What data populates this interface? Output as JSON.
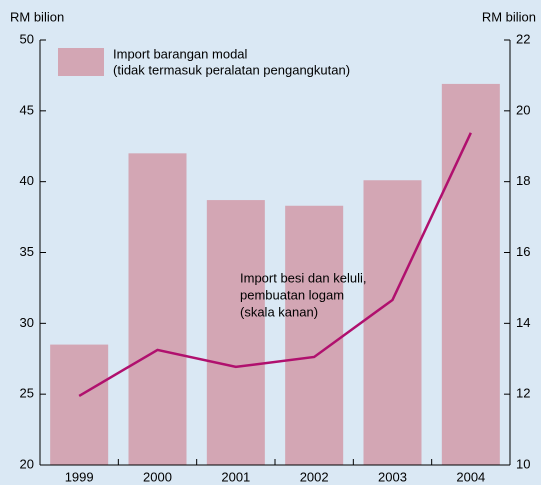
{
  "chart_data": {
    "type": "bar-line",
    "y_label": "RM bilion",
    "y2_label": "RM bilion",
    "categories": [
      "1999",
      "2000",
      "2001",
      "2002",
      "2003",
      "2004"
    ],
    "series": [
      {
        "type": "bar",
        "color": "#d3a6b4",
        "values": [
          28.5,
          42.0,
          38.7,
          38.3,
          40.1,
          46.9
        ]
      },
      {
        "type": "line",
        "axis": "y2",
        "color": "#b0106e",
        "values": [
          11.95,
          13.25,
          12.77,
          13.05,
          14.66,
          19.38
        ]
      }
    ],
    "legend_lines": [
      "Import barangan modal",
      "(tidak termasuk peralatan pengangkutan)"
    ],
    "annotation_lines": [
      "Import besi dan keluli,",
      "pembuatan logam",
      "(skala kanan)"
    ],
    "ylim": [
      20,
      50
    ],
    "yticks": [
      20,
      25,
      30,
      35,
      40,
      45,
      50
    ],
    "y2lim": [
      10,
      22
    ],
    "y2ticks": [
      10,
      12,
      14,
      16,
      18,
      20,
      22
    ]
  }
}
